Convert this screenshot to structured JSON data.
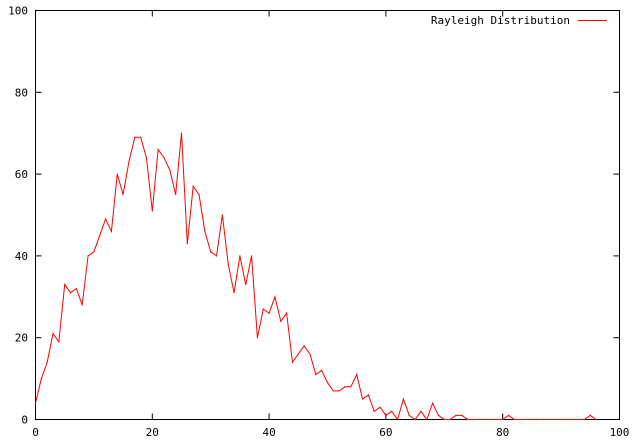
{
  "chart_data": {
    "type": "line",
    "title": "",
    "xlabel": "",
    "ylabel": "",
    "xlim": [
      0,
      100
    ],
    "ylim": [
      0,
      100
    ],
    "x_ticks": [
      "0",
      "20",
      "40",
      "60",
      "80",
      "100"
    ],
    "y_ticks": [
      "0",
      "20",
      "40",
      "60",
      "80",
      "100"
    ],
    "grid": false,
    "legend_position": "top-right",
    "series": [
      {
        "name": "Rayleigh Distribution",
        "color": "#ff0000",
        "x": [
          0,
          1,
          2,
          3,
          4,
          5,
          6,
          7,
          8,
          9,
          10,
          11,
          12,
          13,
          14,
          15,
          16,
          17,
          18,
          19,
          20,
          21,
          22,
          23,
          24,
          25,
          26,
          27,
          28,
          29,
          30,
          31,
          32,
          33,
          34,
          35,
          36,
          37,
          38,
          39,
          40,
          41,
          42,
          43,
          44,
          45,
          46,
          47,
          48,
          49,
          50,
          51,
          52,
          53,
          54,
          55,
          56,
          57,
          58,
          59,
          60,
          61,
          62,
          63,
          64,
          65,
          66,
          67,
          68,
          69,
          70,
          71,
          72,
          73,
          74,
          75,
          76,
          77,
          78,
          79,
          80,
          81,
          82,
          83,
          84,
          85,
          86,
          87,
          88,
          89,
          90,
          91,
          92,
          93,
          94,
          95,
          96
        ],
        "y": [
          4,
          10,
          14,
          21,
          19,
          33,
          31,
          32,
          28,
          40,
          41,
          45,
          49,
          46,
          60,
          55,
          63,
          69,
          69,
          64,
          51,
          66,
          64,
          61,
          55,
          70,
          43,
          57,
          55,
          46,
          41,
          40,
          50,
          38,
          31,
          40,
          33,
          40,
          20,
          27,
          26,
          30,
          24,
          26,
          14,
          16,
          18,
          16,
          11,
          12,
          9,
          7,
          7,
          8,
          8,
          11,
          5,
          6,
          2,
          3,
          1,
          2,
          0,
          5,
          1,
          0,
          2,
          0,
          4,
          1,
          0,
          0,
          1,
          1,
          0,
          0,
          0,
          0,
          0,
          0,
          0,
          1,
          0,
          0,
          0,
          0,
          0,
          0,
          0,
          0,
          0,
          0,
          0,
          0,
          0,
          1,
          0
        ]
      }
    ]
  }
}
